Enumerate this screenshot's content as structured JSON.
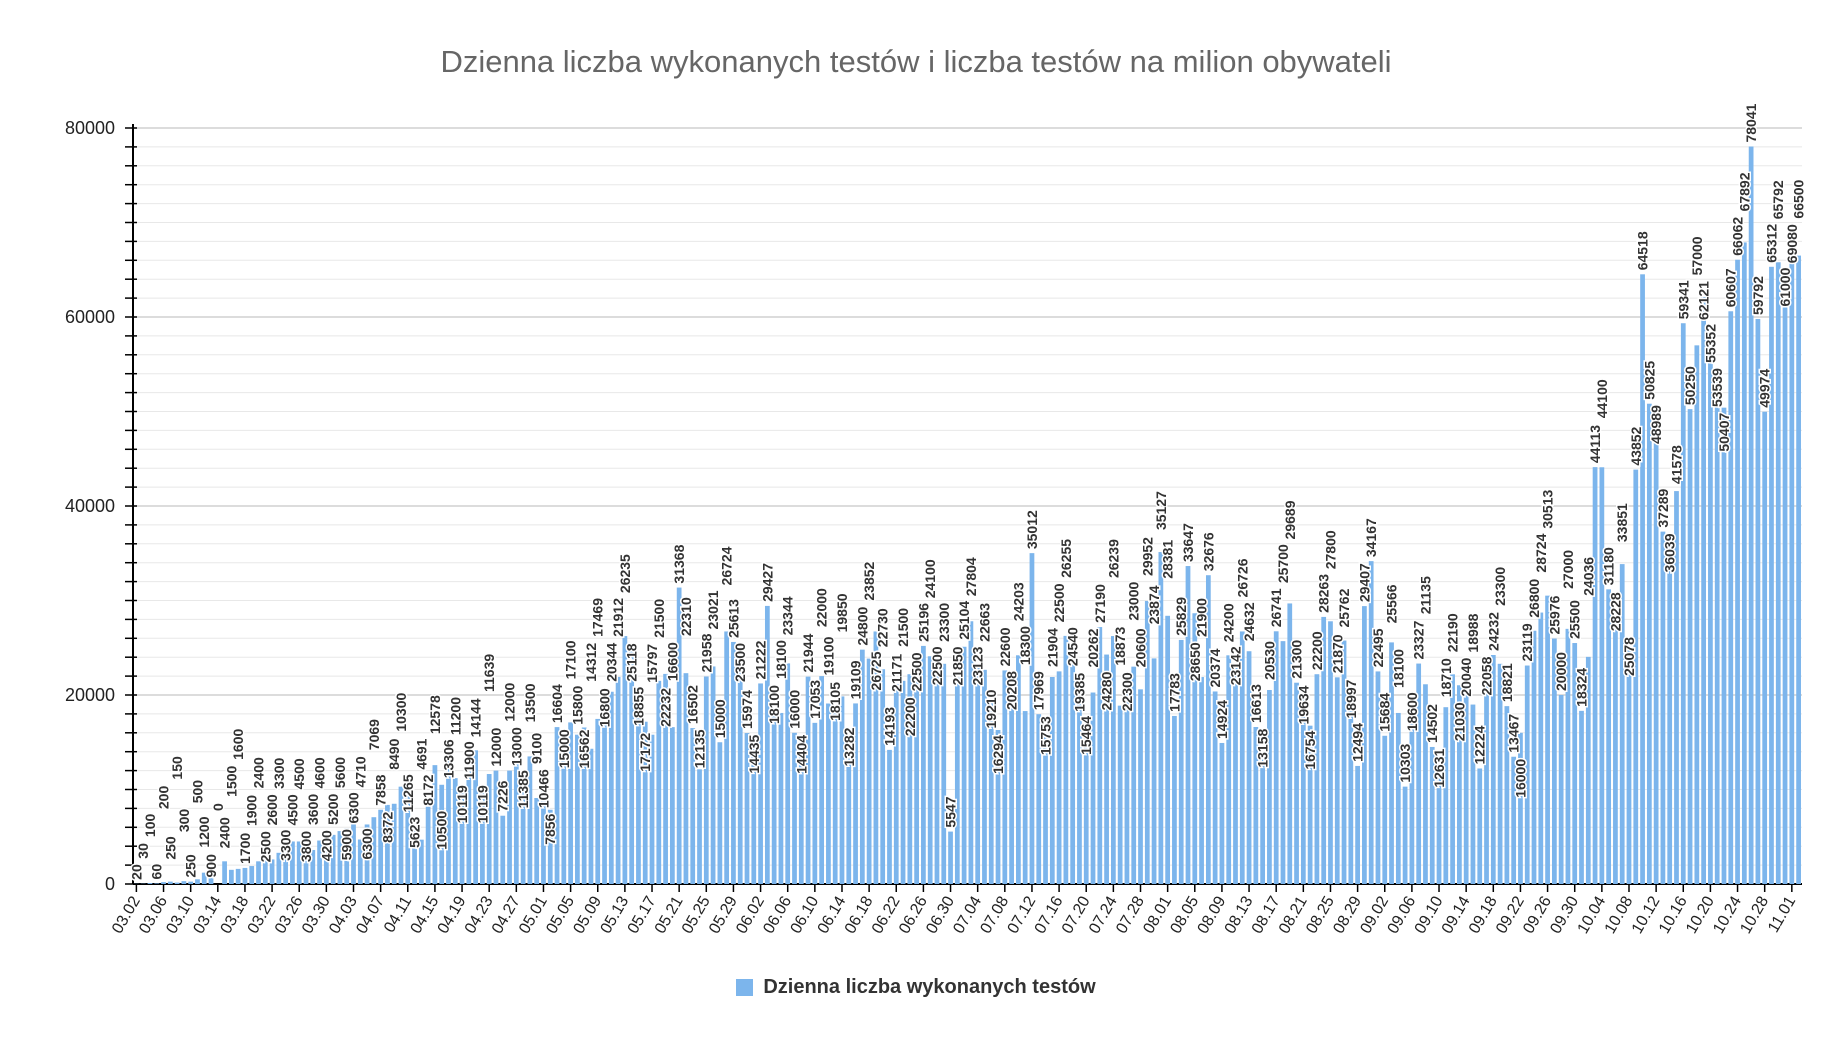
{
  "chart_data": {
    "type": "bar",
    "title": "Dzienna liczba wykonanych testów i liczba testów na  milion obywateli",
    "xlabel": "",
    "ylabel": "",
    "ylim": [
      0,
      80000
    ],
    "y_ticks": [
      "0",
      "20000",
      "40000",
      "60000",
      "80000"
    ],
    "grid": true,
    "legend_position": "bottom",
    "start_date": "03.02",
    "x_tick_labels": [
      "03.02",
      "03.06",
      "03.10",
      "03.14",
      "03.18",
      "03.22",
      "03.26",
      "03.30",
      "04.03",
      "04.07",
      "04.11",
      "04.15",
      "04.19",
      "04.23",
      "04.27",
      "05.01",
      "05.05",
      "05.09",
      "05.13",
      "05.17",
      "05.21",
      "05.25",
      "05.29",
      "06.02",
      "06.06",
      "06.10",
      "06.14",
      "06.18",
      "06.22",
      "06.26",
      "06.30",
      "07.04",
      "07.08",
      "07.12",
      "07.16",
      "07.20",
      "07.24",
      "07.28",
      "08.01",
      "08.05",
      "08.09",
      "08.13",
      "08.17",
      "08.21",
      "08.25",
      "08.29",
      "09.02",
      "09.06",
      "09.10",
      "09.14",
      "09.18",
      "09.22",
      "09.26",
      "09.30",
      "10.04",
      "10.08",
      "10.12",
      "10.16",
      "10.20",
      "10.24",
      "10.28",
      "11.01"
    ],
    "series": [
      {
        "name": "Dzienna liczba wykonanych testów",
        "color": "#7cb5ec",
        "values": [
          20,
          30,
          100,
          60,
          200,
          250,
          150,
          300,
          250,
          500,
          1200,
          900,
          0,
          2400,
          1500,
          1600,
          1700,
          1900,
          2400,
          2500,
          2600,
          3300,
          3300,
          4500,
          4500,
          3800,
          3600,
          4600,
          4200,
          5200,
          5600,
          5900,
          6300,
          4710,
          6300,
          7069,
          7858,
          8372,
          8490,
          10300,
          11265,
          5623,
          4691,
          8172,
          12578,
          10500,
          13306,
          11200,
          10119,
          11900,
          14144,
          10119,
          11639,
          12000,
          7226,
          12000,
          13000,
          11385,
          13500,
          9100,
          10466,
          7856,
          16604,
          15000,
          17100,
          15800,
          16562,
          14312,
          17469,
          16800,
          20344,
          21912,
          26235,
          25118,
          18855,
          17172,
          15797,
          21500,
          22232,
          16600,
          31368,
          22310,
          16502,
          12135,
          21958,
          23021,
          15000,
          26724,
          25613,
          23500,
          15974,
          14435,
          21222,
          29427,
          18100,
          18100,
          23344,
          16000,
          14404,
          21944,
          17053,
          22000,
          19100,
          18105,
          19850,
          13282,
          19109,
          24800,
          23852,
          26725,
          22730,
          14193,
          21171,
          21500,
          22200,
          22500,
          25196,
          24100,
          22500,
          23300,
          5547,
          21850,
          25104,
          27804,
          23123,
          22663,
          19210,
          16294,
          22600,
          20208,
          24203,
          18300,
          35012,
          17969,
          15753,
          21904,
          22500,
          26255,
          24540,
          19385,
          15464,
          20262,
          27190,
          24280,
          26239,
          18873,
          22300,
          23000,
          20600,
          29952,
          23874,
          35127,
          28381,
          17783,
          25829,
          33647,
          28650,
          21900,
          32676,
          20374,
          14924,
          24200,
          23142,
          26726,
          24632,
          16613,
          13158,
          20530,
          26741,
          25700,
          29689,
          21300,
          19634,
          16754,
          22200,
          28263,
          27800,
          21870,
          25762,
          18997,
          12494,
          29407,
          34167,
          22495,
          15684,
          25566,
          18100,
          10303,
          18600,
          23327,
          21135,
          14502,
          12631,
          18710,
          22190,
          21030,
          20040,
          18988,
          12224,
          22058,
          24232,
          23300,
          18821,
          13467,
          16000,
          23119,
          26800,
          28724,
          30513,
          25976,
          20000,
          27000,
          25500,
          18324,
          24036,
          44113,
          44100,
          31180,
          28228,
          33851,
          25078,
          43852,
          64518,
          50825,
          48989,
          37289,
          36039,
          41578,
          59341,
          50250,
          57000,
          62121,
          55352,
          53539,
          50407,
          60607,
          66062,
          67892,
          78041,
          59792,
          49974,
          65312,
          65792,
          61000,
          69080,
          66500
        ]
      }
    ]
  }
}
